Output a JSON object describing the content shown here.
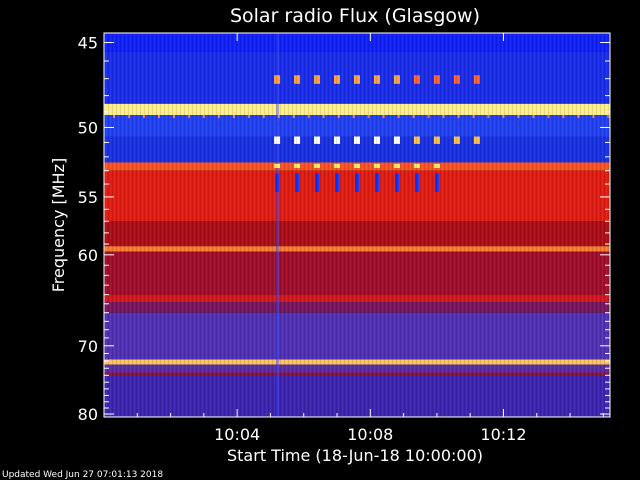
{
  "chart_data": {
    "type": "heatmap",
    "title": "Solar radio Flux (Glasgow)",
    "xlabel": "Start Time (18-Jun-18 10:00:00)",
    "ylabel": "Frequency [MHz]",
    "x_ticks": [
      "10:04",
      "10:08",
      "10:12"
    ],
    "x_tick_minutes": [
      4,
      8,
      12
    ],
    "x_range_minutes": [
      0,
      15.2
    ],
    "y_ticks": [
      "45",
      "50",
      "55",
      "60",
      "70",
      "80"
    ],
    "y_tick_values": [
      45,
      50,
      55,
      60,
      70,
      80
    ],
    "y_range_mhz": [
      44.5,
      80.5
    ],
    "y_scale": "reciprocal",
    "colormap": [
      "#000000",
      "#1a0a6e",
      "#3a2bd0",
      "#2030ff",
      "#c01010",
      "#ff2000",
      "#ff8800",
      "#ffff60",
      "#ffffff"
    ],
    "bands": [
      {
        "f0": 44.5,
        "f1": 45.5,
        "color": "#1020ff"
      },
      {
        "f0": 45.5,
        "f1": 48.5,
        "color": "#1a2cf0"
      },
      {
        "f0": 48.5,
        "f1": 49.2,
        "color": "#ffee88"
      },
      {
        "f0": 49.2,
        "f1": 50.6,
        "color": "#2040f8"
      },
      {
        "f0": 50.6,
        "f1": 52.4,
        "color": "#1830e8"
      },
      {
        "f0": 52.4,
        "f1": 53.0,
        "color": "#ff5020"
      },
      {
        "f0": 53.0,
        "f1": 57.0,
        "color": "#e51a10"
      },
      {
        "f0": 57.0,
        "f1": 59.2,
        "color": "#b00c14"
      },
      {
        "f0": 59.2,
        "f1": 59.7,
        "color": "#ff7a30"
      },
      {
        "f0": 59.7,
        "f1": 64.0,
        "color": "#a40c2a"
      },
      {
        "f0": 64.0,
        "f1": 64.8,
        "color": "#d8141c"
      },
      {
        "f0": 64.8,
        "f1": 66.0,
        "color": "#7a1660"
      },
      {
        "f0": 66.0,
        "f1": 71.8,
        "color": "#5030b8"
      },
      {
        "f0": 71.8,
        "f1": 72.5,
        "color": "#ffc060"
      },
      {
        "f0": 72.5,
        "f1": 73.6,
        "color": "#5a2aa8"
      },
      {
        "f0": 73.6,
        "f1": 74.1,
        "color": "#901038"
      },
      {
        "f0": 74.1,
        "f1": 80.5,
        "color": "#3e24b4"
      }
    ],
    "bursts": [
      {
        "t": 5.2,
        "f0": 46.8,
        "f1": 47.3,
        "color": "#ffa040"
      },
      {
        "t": 5.2,
        "f0": 50.6,
        "f1": 51.1,
        "color": "#ffffff"
      },
      {
        "t": 5.2,
        "f0": 53.2,
        "f1": 54.5,
        "color": "#1020ff"
      }
    ],
    "burst_times_minutes": [
      5.2,
      5.8,
      6.4,
      7.0,
      7.6,
      8.2,
      8.8,
      9.4,
      10.0,
      10.6,
      11.2
    ]
  },
  "footer": {
    "updated": "Updated Wed Jun 27 07:01:13 2018"
  }
}
